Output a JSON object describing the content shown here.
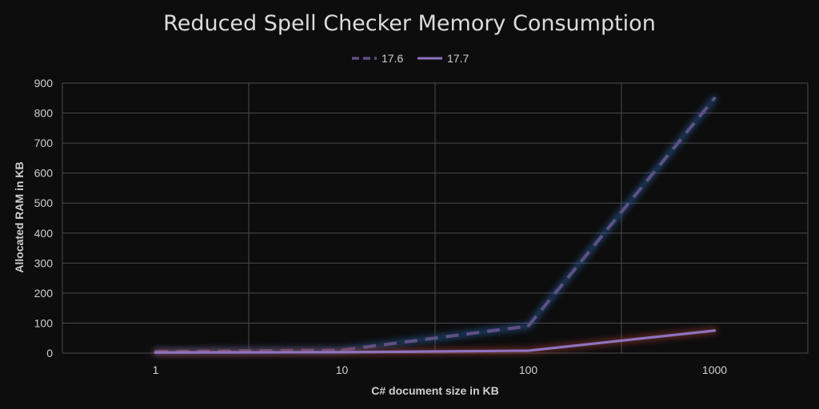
{
  "chart_data": {
    "type": "line",
    "title": "Reduced Spell Checker Memory Consumption",
    "xlabel": "C# document size in KB",
    "ylabel": "Allocated RAM in KB",
    "categories": [
      "1",
      "10",
      "100",
      "1000"
    ],
    "ylim": [
      0,
      900
    ],
    "yticks": [
      0,
      100,
      200,
      300,
      400,
      500,
      600,
      700,
      800,
      900
    ],
    "grid": true,
    "legend_position": "top-center",
    "series": [
      {
        "name": "17.6",
        "values": [
          5,
          10,
          90,
          850
        ],
        "color": "#5e5085",
        "glow": "#2f6fb8",
        "style": "dashed"
      },
      {
        "name": "17.7",
        "values": [
          2,
          3,
          8,
          75
        ],
        "color": "#8e73bf",
        "glow": "#b8453a",
        "style": "solid"
      }
    ]
  }
}
